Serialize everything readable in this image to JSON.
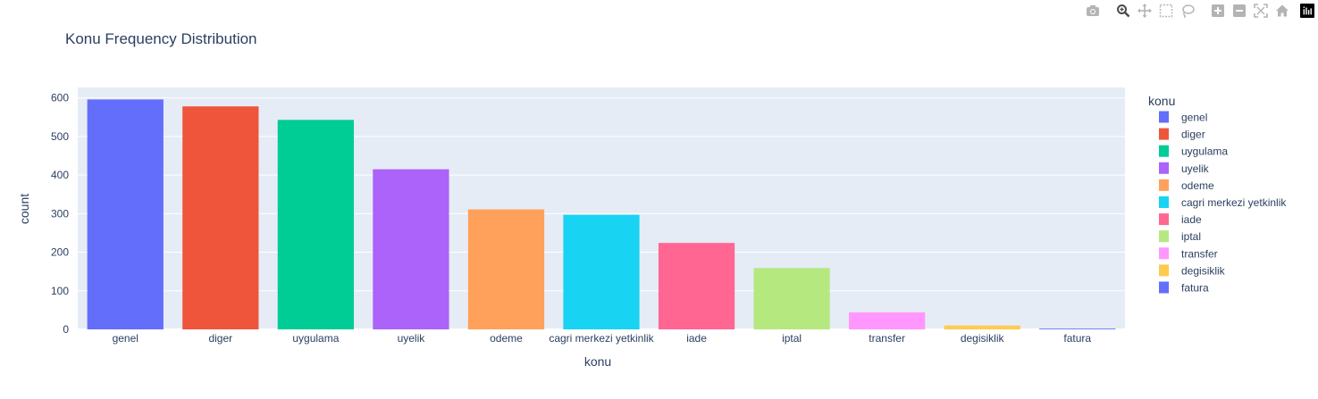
{
  "chart_data": {
    "type": "bar",
    "title": "Konu Frequency Distribution",
    "xlabel": "konu",
    "ylabel": "count",
    "categories": [
      "genel",
      "diger",
      "uygulama",
      "uyelik",
      "odeme",
      "cagri merkezi yetkinlik",
      "iade",
      "iptal",
      "transfer",
      "degisiklik",
      "fatura"
    ],
    "values": [
      596,
      578,
      543,
      415,
      311,
      297,
      224,
      159,
      44,
      10,
      2
    ],
    "colors": [
      "#636efa",
      "#EF553B",
      "#00cc96",
      "#ab63fa",
      "#FFA15A",
      "#19d3f3",
      "#FF6692",
      "#B6E880",
      "#FF97FF",
      "#FECB52",
      "#636efa"
    ],
    "ylim": [
      0,
      627
    ],
    "yticks": [
      0,
      100,
      200,
      300,
      400,
      500,
      600
    ],
    "grid": true,
    "legend": {
      "title": "konu",
      "position": "right",
      "entries": [
        "genel",
        "diger",
        "uygulama",
        "uyelik",
        "odeme",
        "cagri merkezi yetkinlik",
        "iade",
        "iptal",
        "transfer",
        "degisiklik",
        "fatura"
      ]
    },
    "plot_bg": "#E5ECF6"
  },
  "modebar": {
    "icons": [
      "camera-icon",
      "zoom-icon",
      "pan-icon",
      "box-select-icon",
      "lasso-select-icon",
      "zoom-in-icon",
      "zoom-out-icon",
      "autoscale-icon",
      "reset-axes-icon",
      "plotly-logo-icon"
    ]
  }
}
